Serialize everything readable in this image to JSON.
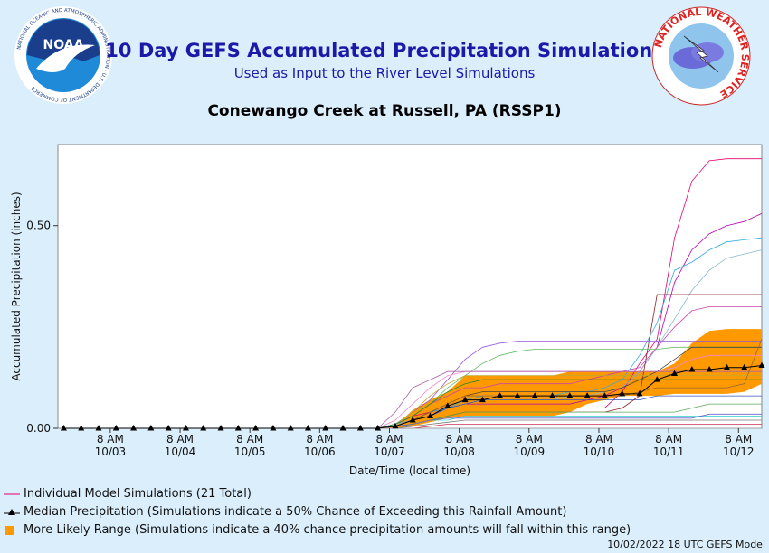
{
  "header": {
    "title": "10 Day GEFS Accumulated Precipitation Simulations",
    "subtitle": "Used as Input to the River Level Simulations",
    "location": "Conewango Creek at Russell, PA (RSSP1)"
  },
  "logos": {
    "noaa": {
      "text": "NOAA",
      "ring_text": "NATIONAL OCEANIC AND ATMOSPHERIC ADMINISTRATION · U.S. DEPARTMENT OF COMMERCE"
    },
    "nws": {
      "ring_text": "NATIONAL WEATHER SERVICE"
    }
  },
  "legend": {
    "individual": "Individual Model Simulations (21 Total)",
    "median": "Median Precipitation (Simulations indicate a 50% Chance of Exceeding this Rainfall Amount)",
    "range": "More Likely Range (Simulations indicate a 40% chance precipitation amounts will fall within this range)"
  },
  "footer": "10/02/2022 18 UTC GEFS Model",
  "colors": {
    "background": "#dbeefb",
    "plot_bg": "#ffffff",
    "title": "#1a1aa8",
    "range_fill": "#ff9900",
    "median": "#000000"
  },
  "chart_data": {
    "type": "line",
    "xlabel": "Date/Time (local time)",
    "ylabel": "Accumulated Precipitation (inches)",
    "x_start": "10/02 14:00",
    "x_end": "10/12 14:00",
    "ylim": [
      0,
      0.7
    ],
    "yticks": [
      0.0,
      0.5
    ],
    "ytick_labels": [
      "0.00",
      "0.50"
    ],
    "xtick_labels": [
      {
        "time": "8 AM",
        "date": "10/03"
      },
      {
        "time": "8 AM",
        "date": "10/04"
      },
      {
        "time": "8 AM",
        "date": "10/05"
      },
      {
        "time": "8 AM",
        "date": "10/06"
      },
      {
        "time": "8 AM",
        "date": "10/07"
      },
      {
        "time": "8 AM",
        "date": "10/08"
      },
      {
        "time": "8 AM",
        "date": "10/09"
      },
      {
        "time": "8 AM",
        "date": "10/10"
      },
      {
        "time": "8 AM",
        "date": "10/11"
      },
      {
        "time": "8 AM",
        "date": "10/12"
      }
    ],
    "x_hours": [
      2,
      8,
      14,
      20,
      26,
      32,
      38,
      44,
      50,
      56,
      62,
      68,
      74,
      80,
      86,
      92,
      98,
      104,
      110,
      116,
      122,
      128,
      134,
      140,
      146,
      152,
      158,
      164,
      170,
      176,
      182,
      188,
      194,
      200,
      206,
      212,
      218,
      224,
      230,
      236,
      242
    ],
    "median": [
      0,
      0,
      0,
      0,
      0,
      0,
      0,
      0,
      0,
      0,
      0,
      0,
      0,
      0,
      0,
      0,
      0,
      0,
      0,
      0.005,
      0.02,
      0.03,
      0.055,
      0.07,
      0.07,
      0.08,
      0.08,
      0.08,
      0.08,
      0.08,
      0.08,
      0.08,
      0.085,
      0.085,
      0.12,
      0.135,
      0.145,
      0.145,
      0.15,
      0.15,
      0.155
    ],
    "range_low": [
      0,
      0,
      0,
      0,
      0,
      0,
      0,
      0,
      0,
      0,
      0,
      0,
      0,
      0,
      0,
      0,
      0,
      0,
      0,
      0,
      0.005,
      0.015,
      0.025,
      0.03,
      0.03,
      0.03,
      0.03,
      0.03,
      0.03,
      0.04,
      0.06,
      0.07,
      0.08,
      0.08,
      0.08,
      0.085,
      0.085,
      0.085,
      0.085,
      0.09,
      0.11
    ],
    "range_high": [
      0,
      0,
      0,
      0,
      0,
      0,
      0,
      0,
      0,
      0,
      0,
      0,
      0,
      0,
      0,
      0,
      0,
      0,
      0,
      0.005,
      0.045,
      0.07,
      0.09,
      0.13,
      0.13,
      0.13,
      0.13,
      0.13,
      0.13,
      0.14,
      0.14,
      0.14,
      0.14,
      0.14,
      0.14,
      0.16,
      0.21,
      0.24,
      0.245,
      0.245,
      0.245
    ],
    "simulations": [
      {
        "color": "#e6006e",
        "values": [
          0,
          0,
          0,
          0,
          0,
          0,
          0,
          0,
          0,
          0,
          0,
          0,
          0,
          0,
          0,
          0,
          0,
          0,
          0,
          0.01,
          0.03,
          0.04,
          0.05,
          0.05,
          0.05,
          0.05,
          0.05,
          0.05,
          0.05,
          0.05,
          0.05,
          0.05,
          0.09,
          0.16,
          0.22,
          0.47,
          0.61,
          0.66,
          0.665,
          0.665,
          0.665
        ]
      },
      {
        "color": "#b400b4",
        "values": [
          0,
          0,
          0,
          0,
          0,
          0,
          0,
          0,
          0,
          0,
          0,
          0,
          0,
          0,
          0,
          0,
          0,
          0,
          0,
          0.01,
          0.02,
          0.03,
          0.05,
          0.06,
          0.06,
          0.06,
          0.06,
          0.06,
          0.06,
          0.06,
          0.07,
          0.08,
          0.1,
          0.14,
          0.2,
          0.36,
          0.44,
          0.48,
          0.5,
          0.51,
          0.53
        ]
      },
      {
        "color": "#33aadd",
        "values": [
          0,
          0,
          0,
          0,
          0,
          0,
          0,
          0,
          0,
          0,
          0,
          0,
          0,
          0,
          0,
          0,
          0,
          0,
          0,
          0.01,
          0.02,
          0.04,
          0.05,
          0.07,
          0.08,
          0.08,
          0.08,
          0.08,
          0.08,
          0.09,
          0.09,
          0.1,
          0.12,
          0.18,
          0.26,
          0.39,
          0.41,
          0.44,
          0.46,
          0.465,
          0.47
        ]
      },
      {
        "color": "#88bbcc",
        "values": [
          0,
          0,
          0,
          0,
          0,
          0,
          0,
          0,
          0,
          0,
          0,
          0,
          0,
          0,
          0,
          0,
          0,
          0,
          0,
          0.01,
          0.02,
          0.03,
          0.05,
          0.06,
          0.07,
          0.07,
          0.07,
          0.07,
          0.07,
          0.08,
          0.08,
          0.09,
          0.1,
          0.14,
          0.2,
          0.27,
          0.34,
          0.39,
          0.42,
          0.43,
          0.44
        ]
      },
      {
        "color": "#8b2222",
        "values": [
          0,
          0,
          0,
          0,
          0,
          0,
          0,
          0,
          0,
          0,
          0,
          0,
          0,
          0,
          0,
          0,
          0,
          0,
          0,
          0.005,
          0.01,
          0.02,
          0.03,
          0.04,
          0.04,
          0.04,
          0.04,
          0.04,
          0.04,
          0.04,
          0.04,
          0.04,
          0.05,
          0.08,
          0.33,
          0.33,
          0.33,
          0.33,
          0.33,
          0.33,
          0.33
        ]
      },
      {
        "color": "#cc44aa",
        "values": [
          0,
          0,
          0,
          0,
          0,
          0,
          0,
          0,
          0,
          0,
          0,
          0,
          0,
          0,
          0,
          0,
          0,
          0,
          0,
          0.01,
          0.03,
          0.06,
          0.08,
          0.1,
          0.1,
          0.11,
          0.11,
          0.11,
          0.11,
          0.11,
          0.12,
          0.13,
          0.14,
          0.15,
          0.2,
          0.25,
          0.29,
          0.3,
          0.3,
          0.3,
          0.3
        ]
      },
      {
        "color": "#9955dd",
        "values": [
          0,
          0,
          0,
          0,
          0,
          0,
          0,
          0,
          0,
          0,
          0,
          0,
          0,
          0,
          0,
          0,
          0,
          0,
          0,
          0.01,
          0.04,
          0.07,
          0.12,
          0.17,
          0.2,
          0.21,
          0.215,
          0.215,
          0.215,
          0.215,
          0.215,
          0.215,
          0.215,
          0.215,
          0.215,
          0.215,
          0.215,
          0.215,
          0.215,
          0.215,
          0.215
        ]
      },
      {
        "color": "#66bb66",
        "values": [
          0,
          0,
          0,
          0,
          0,
          0,
          0,
          0,
          0,
          0,
          0,
          0,
          0,
          0,
          0,
          0,
          0,
          0,
          0,
          0.01,
          0.03,
          0.06,
          0.1,
          0.13,
          0.16,
          0.18,
          0.19,
          0.195,
          0.195,
          0.195,
          0.195,
          0.195,
          0.195,
          0.195,
          0.195,
          0.2,
          0.2,
          0.2,
          0.2,
          0.2,
          0.2
        ]
      },
      {
        "color": "#444444",
        "values": [
          0,
          0,
          0,
          0,
          0,
          0,
          0,
          0,
          0,
          0,
          0,
          0,
          0,
          0,
          0,
          0,
          0,
          0,
          0,
          0.005,
          0.02,
          0.04,
          0.06,
          0.08,
          0.09,
          0.09,
          0.09,
          0.09,
          0.09,
          0.09,
          0.09,
          0.09,
          0.1,
          0.12,
          0.14,
          0.17,
          0.2,
          0.2,
          0.2,
          0.2,
          0.2
        ]
      },
      {
        "color": "#ee88cc",
        "values": [
          0,
          0,
          0,
          0,
          0,
          0,
          0,
          0,
          0,
          0,
          0,
          0,
          0,
          0,
          0,
          0,
          0,
          0,
          0,
          0.02,
          0.06,
          0.1,
          0.13,
          0.14,
          0.14,
          0.14,
          0.14,
          0.14,
          0.14,
          0.14,
          0.14,
          0.14,
          0.14,
          0.14,
          0.14,
          0.15,
          0.17,
          0.18,
          0.18,
          0.18,
          0.18
        ]
      },
      {
        "color": "#aa66aa",
        "values": [
          0,
          0,
          0,
          0,
          0,
          0,
          0,
          0,
          0,
          0,
          0,
          0,
          0,
          0,
          0,
          0,
          0,
          0,
          0,
          0.04,
          0.1,
          0.12,
          0.14,
          0.14,
          0.14,
          0.14,
          0.14,
          0.14,
          0.14,
          0.14,
          0.14,
          0.14,
          0.14,
          0.14,
          0.14,
          0.14,
          0.14,
          0.14,
          0.14,
          0.14,
          0.14
        ]
      },
      {
        "color": "#bbaa33",
        "values": [
          0,
          0,
          0,
          0,
          0,
          0,
          0,
          0,
          0,
          0,
          0,
          0,
          0,
          0,
          0,
          0,
          0,
          0,
          0,
          0.01,
          0.04,
          0.08,
          0.11,
          0.13,
          0.13,
          0.13,
          0.13,
          0.13,
          0.13,
          0.13,
          0.13,
          0.13,
          0.13,
          0.13,
          0.13,
          0.13,
          0.13,
          0.13,
          0.13,
          0.13,
          0.13
        ]
      },
      {
        "color": "#228833",
        "values": [
          0,
          0,
          0,
          0,
          0,
          0,
          0,
          0,
          0,
          0,
          0,
          0,
          0,
          0,
          0,
          0,
          0,
          0,
          0,
          0.01,
          0.03,
          0.06,
          0.09,
          0.11,
          0.12,
          0.12,
          0.12,
          0.12,
          0.12,
          0.12,
          0.12,
          0.12,
          0.12,
          0.12,
          0.12,
          0.12,
          0.12,
          0.12,
          0.12,
          0.12,
          0.12
        ]
      },
      {
        "color": "#996633",
        "values": [
          0,
          0,
          0,
          0,
          0,
          0,
          0,
          0,
          0,
          0,
          0,
          0,
          0,
          0,
          0,
          0,
          0,
          0,
          0,
          0.005,
          0.02,
          0.04,
          0.06,
          0.08,
          0.08,
          0.08,
          0.08,
          0.08,
          0.08,
          0.08,
          0.08,
          0.08,
          0.08,
          0.09,
          0.1,
          0.1,
          0.1,
          0.1,
          0.1,
          0.11,
          0.22
        ]
      },
      {
        "color": "#3355bb",
        "values": [
          0,
          0,
          0,
          0,
          0,
          0,
          0,
          0,
          0,
          0,
          0,
          0,
          0,
          0,
          0,
          0,
          0,
          0,
          0,
          0.005,
          0.02,
          0.03,
          0.05,
          0.06,
          0.07,
          0.07,
          0.07,
          0.07,
          0.07,
          0.07,
          0.07,
          0.07,
          0.07,
          0.07,
          0.08,
          0.08,
          0.08,
          0.08,
          0.08,
          0.08,
          0.08
        ]
      },
      {
        "color": "#55aa55",
        "values": [
          0,
          0,
          0,
          0,
          0,
          0,
          0,
          0,
          0,
          0,
          0,
          0,
          0,
          0,
          0,
          0,
          0,
          0,
          0,
          0.005,
          0.01,
          0.02,
          0.03,
          0.04,
          0.04,
          0.04,
          0.04,
          0.04,
          0.04,
          0.04,
          0.04,
          0.04,
          0.04,
          0.04,
          0.04,
          0.04,
          0.05,
          0.06,
          0.06,
          0.06,
          0.06
        ]
      },
      {
        "color": "#33cccc",
        "values": [
          0,
          0,
          0,
          0,
          0,
          0,
          0,
          0,
          0,
          0,
          0,
          0,
          0,
          0,
          0,
          0,
          0,
          0,
          0,
          0.005,
          0.01,
          0.02,
          0.02,
          0.03,
          0.03,
          0.03,
          0.03,
          0.03,
          0.03,
          0.03,
          0.03,
          0.03,
          0.03,
          0.03,
          0.03,
          0.03,
          0.03,
          0.03,
          0.03,
          0.03,
          0.03
        ]
      },
      {
        "color": "#777777",
        "values": [
          0,
          0,
          0,
          0,
          0,
          0,
          0,
          0,
          0,
          0,
          0,
          0,
          0,
          0,
          0,
          0,
          0,
          0,
          0,
          0,
          0.005,
          0.01,
          0.015,
          0.02,
          0.02,
          0.02,
          0.02,
          0.02,
          0.02,
          0.02,
          0.02,
          0.02,
          0.02,
          0.02,
          0.02,
          0.02,
          0.02,
          0.02,
          0.02,
          0.02,
          0.02
        ]
      },
      {
        "color": "#cc3355",
        "values": [
          0,
          0,
          0,
          0,
          0,
          0,
          0,
          0,
          0,
          0,
          0,
          0,
          0,
          0,
          0,
          0,
          0,
          0,
          0,
          0,
          0,
          0.005,
          0.01,
          0.01,
          0.01,
          0.01,
          0.01,
          0.01,
          0.01,
          0.01,
          0.01,
          0.01,
          0.01,
          0.01,
          0.01,
          0.01,
          0.01,
          0.01,
          0.01,
          0.01,
          0.01
        ]
      },
      {
        "color": "#6666cc",
        "values": [
          0,
          0,
          0,
          0,
          0,
          0,
          0,
          0,
          0,
          0,
          0,
          0,
          0,
          0,
          0,
          0,
          0,
          0,
          0,
          0.005,
          0.01,
          0.02,
          0.025,
          0.025,
          0.025,
          0.025,
          0.025,
          0.025,
          0.025,
          0.025,
          0.025,
          0.025,
          0.025,
          0.025,
          0.025,
          0.025,
          0.025,
          0.035,
          0.035,
          0.035,
          0.035
        ]
      },
      {
        "color": "#aaaaaa",
        "values": [
          0,
          0,
          0,
          0,
          0,
          0,
          0,
          0,
          0,
          0,
          0,
          0,
          0,
          0,
          0,
          0,
          0,
          0,
          0,
          0,
          0,
          0,
          0,
          0,
          0,
          0,
          0,
          0,
          0,
          0,
          0,
          0,
          0,
          0,
          0,
          0,
          0,
          0,
          0,
          0,
          0
        ]
      }
    ]
  }
}
